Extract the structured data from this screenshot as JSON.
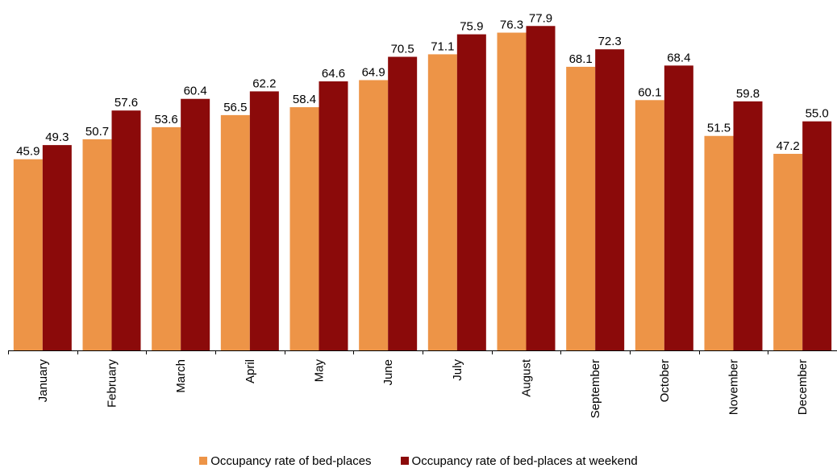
{
  "chart_data": {
    "type": "bar",
    "title": "",
    "xlabel": "",
    "ylabel": "",
    "categories": [
      "January",
      "February",
      "March",
      "April",
      "May",
      "June",
      "July",
      "August",
      "September",
      "October",
      "November",
      "December"
    ],
    "series": [
      {
        "name": "Occupancy rate of bed-places",
        "color": "#ED9447",
        "values": [
          45.9,
          50.7,
          53.6,
          56.5,
          58.4,
          64.9,
          71.1,
          76.3,
          68.1,
          60.1,
          51.5,
          47.2
        ]
      },
      {
        "name": "Occupancy rate of bed-places at weekend",
        "color": "#8B0A0A",
        "values": [
          49.3,
          57.6,
          60.4,
          62.2,
          64.6,
          70.5,
          75.9,
          77.9,
          72.3,
          68.4,
          59.8,
          55.0
        ]
      }
    ],
    "ylim": [
      0,
      80
    ],
    "grid": false,
    "legend": "bottom-center"
  }
}
